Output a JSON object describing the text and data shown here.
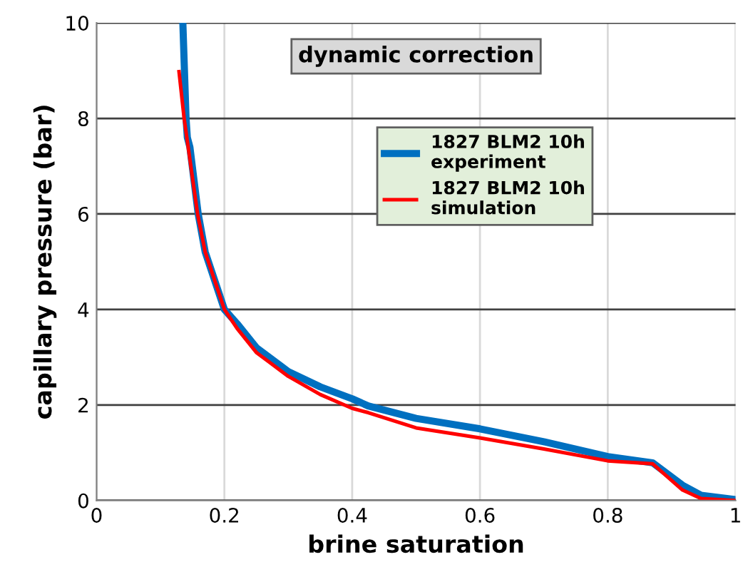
{
  "chart_data": {
    "type": "line",
    "xlabel": "brine saturation",
    "ylabel": "capillary pressure (bar)",
    "annotations": [
      "dynamic correction"
    ],
    "xlim": [
      0,
      1
    ],
    "xticks": [
      0,
      0.2,
      0.4,
      0.6,
      0.8,
      1
    ],
    "ylim": [
      0,
      10
    ],
    "yticks": [
      0,
      2,
      4,
      6,
      8,
      10
    ],
    "grid": true,
    "legend": "top right",
    "marker": "none",
    "line_style": "solid",
    "series": [
      {
        "name": "1827 BLM2 10h experiment",
        "color": "#0070c0",
        "x": [
          0.135,
          0.14,
          0.142,
          0.146,
          0.159,
          0.17,
          0.2,
          0.22,
          0.25,
          0.3,
          0.35,
          0.4,
          0.425,
          0.5,
          0.6,
          0.7,
          0.8,
          0.87,
          0.917,
          0.946,
          1.0
        ],
        "values": [
          10,
          8,
          7.6,
          7.4,
          6,
          5.2,
          4,
          3.7,
          3.2,
          2.7,
          2.38,
          2.13,
          1.98,
          1.72,
          1.5,
          1.23,
          0.92,
          0.79,
          0.32,
          0.11,
          0.02
        ]
      },
      {
        "name": "1827 BLM2 10h simulation",
        "color": "#ff0000",
        "x": [
          0.129,
          0.137,
          0.158,
          0.17,
          0.2,
          0.22,
          0.25,
          0.3,
          0.35,
          0.4,
          0.425,
          0.5,
          0.6,
          0.7,
          0.8,
          0.87,
          0.917,
          0.946,
          1.0
        ],
        "values": [
          8.98,
          8,
          6,
          5.2,
          4,
          3.6,
          3.1,
          2.6,
          2.22,
          1.93,
          1.84,
          1.52,
          1.31,
          1.08,
          0.83,
          0.77,
          0.22,
          0.04,
          0
        ]
      }
    ]
  }
}
